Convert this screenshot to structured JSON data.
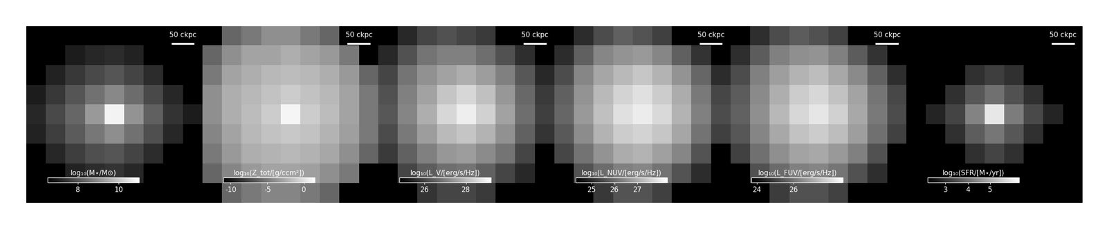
{
  "chart_data": [
    {
      "type": "heatmap",
      "annotation": "50 ckpc",
      "tick_labels": false,
      "colorbar_label": "log₁₀(M⋆/M⊙)",
      "colorbar_range": [
        6.5,
        11.0
      ],
      "colorbar_ticks": [
        8,
        10
      ],
      "cells": [
        [
          null,
          null,
          null,
          null,
          null,
          null,
          null,
          null,
          null
        ],
        [
          null,
          null,
          7.0,
          7.2,
          7.3,
          7.1,
          null,
          null,
          null
        ],
        [
          null,
          7.1,
          7.5,
          7.8,
          8.0,
          7.7,
          7.3,
          null,
          null
        ],
        [
          7.0,
          7.5,
          8.0,
          8.5,
          8.9,
          8.4,
          7.8,
          7.2,
          null
        ],
        [
          7.2,
          7.8,
          8.3,
          9.2,
          10.8,
          9.1,
          8.2,
          7.4,
          7.0
        ],
        [
          7.1,
          7.6,
          8.1,
          8.6,
          9.0,
          8.5,
          7.9,
          7.2,
          null
        ],
        [
          null,
          7.2,
          7.6,
          7.9,
          8.0,
          7.7,
          7.3,
          null,
          null
        ],
        [
          null,
          null,
          7.1,
          7.3,
          7.4,
          7.2,
          null,
          null,
          null
        ],
        [
          null,
          null,
          null,
          null,
          null,
          null,
          null,
          null,
          null
        ]
      ]
    },
    {
      "type": "heatmap",
      "annotation": "50 ckpc",
      "tick_labels": false,
      "colorbar_label": "log₁₀(Z_tot/[g/ccm²])",
      "colorbar_range": [
        -11.0,
        1.5
      ],
      "colorbar_ticks": [
        -10,
        -5,
        0
      ],
      "cells": [
        [
          null,
          -6,
          -5,
          -4,
          -4,
          -5,
          -6,
          null,
          null
        ],
        [
          -6,
          -4,
          -3,
          -3,
          -2.5,
          -3,
          -3.5,
          -5,
          null
        ],
        [
          -5,
          -3,
          -2.5,
          -2,
          -1.8,
          -2,
          -2.5,
          -3.5,
          -6
        ],
        [
          -4,
          -2.5,
          -2,
          -1.5,
          -1,
          -1.5,
          -2,
          -3,
          -5
        ],
        [
          -4,
          -2.5,
          -1.8,
          -1,
          1.0,
          -1,
          -1.8,
          -3,
          -5
        ],
        [
          -4.5,
          -3,
          -2,
          -1.5,
          -1.2,
          -1.5,
          -2.2,
          -3.2,
          -5
        ],
        [
          -5,
          -3.5,
          -2.5,
          -2.2,
          -2,
          -2.3,
          -2.8,
          -4,
          -6
        ],
        [
          -6,
          -4.5,
          -3.5,
          -3,
          -3,
          -3.2,
          -4,
          -5,
          null
        ],
        [
          null,
          -6,
          -5,
          -4.5,
          -4.5,
          -5,
          -6,
          null,
          null
        ]
      ]
    },
    {
      "type": "heatmap",
      "annotation": "50 ckpc",
      "tick_labels": false,
      "colorbar_label": "log₁₀(L_V/[erg/s/Hz])",
      "colorbar_range": [
        24.8,
        29.2
      ],
      "colorbar_ticks": [
        26,
        28
      ],
      "cells": [
        [
          null,
          25.5,
          26.0,
          26.2,
          26.0,
          25.8,
          null,
          null,
          null
        ],
        [
          25.5,
          26.2,
          26.8,
          27.0,
          27.0,
          26.7,
          26.2,
          25.6,
          null
        ],
        [
          26.0,
          26.8,
          27.3,
          27.6,
          27.8,
          27.5,
          27.0,
          26.3,
          25.5
        ],
        [
          26.2,
          27.0,
          27.6,
          28.2,
          28.5,
          28.1,
          27.4,
          26.6,
          25.8
        ],
        [
          26.3,
          27.1,
          27.8,
          28.5,
          28.9,
          28.4,
          27.6,
          26.7,
          25.9
        ],
        [
          26.1,
          26.9,
          27.5,
          28.0,
          28.2,
          27.9,
          27.3,
          26.5,
          25.7
        ],
        [
          25.8,
          26.5,
          27.0,
          27.4,
          27.5,
          27.2,
          26.8,
          26.0,
          null
        ],
        [
          null,
          26.0,
          26.4,
          26.7,
          26.8,
          26.5,
          26.0,
          25.5,
          null
        ],
        [
          null,
          null,
          25.7,
          26.0,
          26.0,
          25.8,
          null,
          null,
          null
        ]
      ]
    },
    {
      "type": "heatmap",
      "annotation": "50 ckpc",
      "tick_labels": false,
      "colorbar_label": "log₁₀(L_NUV/[erg/s/Hz])",
      "colorbar_range": [
        24.3,
        28.3
      ],
      "colorbar_ticks": [
        25,
        26,
        27
      ],
      "cells": [
        [
          null,
          25.0,
          25.5,
          25.8,
          25.6,
          25.3,
          null,
          null,
          null
        ],
        [
          25.0,
          25.8,
          26.4,
          26.6,
          26.7,
          26.4,
          25.8,
          25.1,
          null
        ],
        [
          25.5,
          26.4,
          26.9,
          27.2,
          27.4,
          27.1,
          26.6,
          25.9,
          25.0
        ],
        [
          25.8,
          26.6,
          27.2,
          27.6,
          27.8,
          27.5,
          27.0,
          26.2,
          25.4
        ],
        [
          25.9,
          26.7,
          27.3,
          27.8,
          28.0,
          27.7,
          27.1,
          26.3,
          25.5
        ],
        [
          25.7,
          26.5,
          27.1,
          27.5,
          27.6,
          27.4,
          26.9,
          26.1,
          25.3
        ],
        [
          25.4,
          26.1,
          26.6,
          27.0,
          27.1,
          26.8,
          26.4,
          25.6,
          null
        ],
        [
          null,
          25.6,
          26.0,
          26.3,
          26.4,
          26.1,
          25.6,
          25.0,
          null
        ],
        [
          null,
          null,
          25.2,
          25.6,
          25.6,
          25.3,
          null,
          null,
          null
        ]
      ]
    },
    {
      "type": "heatmap",
      "annotation": "50 ckpc",
      "tick_labels": false,
      "colorbar_label": "log₁₀(L_FUV/[erg/s/Hz])",
      "colorbar_range": [
        23.7,
        28.7
      ],
      "colorbar_ticks": [
        24,
        26
      ],
      "cells": [
        [
          null,
          24.6,
          25.2,
          25.5,
          25.3,
          25.0,
          null,
          null,
          null
        ],
        [
          24.6,
          25.5,
          26.2,
          26.5,
          26.6,
          26.2,
          25.5,
          24.7,
          null
        ],
        [
          25.2,
          26.2,
          26.8,
          27.2,
          27.4,
          27.0,
          26.4,
          25.6,
          24.6
        ],
        [
          25.5,
          26.4,
          27.1,
          27.7,
          27.9,
          27.5,
          26.9,
          26.0,
          25.1
        ],
        [
          25.6,
          26.5,
          27.3,
          27.9,
          28.2,
          27.8,
          27.0,
          26.1,
          25.2
        ],
        [
          25.4,
          26.3,
          27.0,
          27.5,
          27.7,
          27.4,
          26.8,
          25.9,
          25.0
        ],
        [
          25.0,
          25.9,
          26.5,
          26.9,
          27.0,
          26.7,
          26.2,
          25.3,
          null
        ],
        [
          null,
          25.3,
          25.8,
          26.2,
          26.3,
          26.0,
          25.3,
          24.6,
          null
        ],
        [
          null,
          null,
          24.9,
          25.3,
          25.3,
          25.0,
          null,
          null,
          null
        ]
      ]
    },
    {
      "type": "heatmap",
      "annotation": "50 ckpc",
      "tick_labels": false,
      "colorbar_label": "log₁₀(SFR/[M⋆/yr])",
      "colorbar_range": [
        2.2,
        6.3
      ],
      "colorbar_ticks": [
        3,
        4,
        5
      ],
      "cells": [
        [
          null,
          null,
          null,
          null,
          null,
          null,
          null,
          null,
          null
        ],
        [
          null,
          null,
          null,
          null,
          null,
          null,
          null,
          null,
          null
        ],
        [
          null,
          null,
          null,
          3.0,
          3.2,
          3.0,
          null,
          null,
          null
        ],
        [
          null,
          null,
          3.0,
          3.6,
          4.0,
          3.5,
          3.0,
          null,
          null
        ],
        [
          null,
          2.8,
          3.3,
          4.3,
          5.9,
          4.2,
          3.4,
          2.8,
          null
        ],
        [
          null,
          null,
          3.0,
          3.7,
          4.1,
          3.6,
          3.0,
          null,
          null
        ],
        [
          null,
          null,
          null,
          3.0,
          3.3,
          3.0,
          null,
          null,
          null
        ],
        [
          null,
          null,
          null,
          null,
          null,
          null,
          null,
          null,
          null
        ],
        [
          null,
          null,
          null,
          null,
          null,
          null,
          null,
          null,
          null
        ]
      ]
    }
  ]
}
